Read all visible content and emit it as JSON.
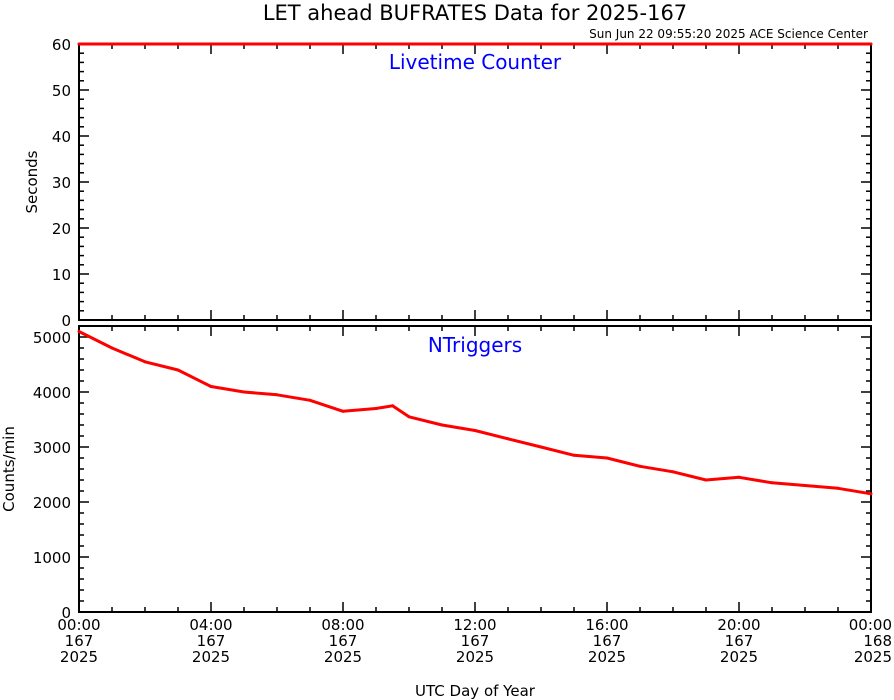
{
  "title": "LET ahead BUFRATES Data for 2025-167",
  "timestamp": "Sun Jun 22 09:55:20 2025 ACE Science Center",
  "xlabel": "UTC Day of Year",
  "colors": {
    "data": "#ff0000",
    "label": "#0000ff",
    "axes": "#000000"
  },
  "chart_data": [
    {
      "type": "line",
      "title": "Livetime Counter",
      "ylabel": "Seconds",
      "ylim": [
        0,
        60
      ],
      "yticks": [
        "0",
        "10",
        "20",
        "30",
        "40",
        "50",
        "60"
      ],
      "xlim": [
        0,
        24
      ],
      "series": [
        {
          "x": [
            0,
            24
          ],
          "values": [
            60,
            60
          ]
        }
      ]
    },
    {
      "type": "line",
      "title": "NTriggers",
      "ylabel": "Counts/min",
      "ylim": [
        0,
        5200
      ],
      "yticks": [
        "0",
        "1000",
        "2000",
        "3000",
        "4000",
        "5000"
      ],
      "xlim": [
        0,
        24
      ],
      "series": [
        {
          "x": [
            0,
            1,
            2,
            3,
            4,
            5,
            6,
            7,
            8,
            9,
            9.5,
            10,
            11,
            12,
            13,
            14,
            15,
            16,
            17,
            18,
            19,
            20,
            21,
            22,
            23,
            24
          ],
          "values": [
            5100,
            4800,
            4550,
            4400,
            4100,
            4000,
            3950,
            3850,
            3650,
            3700,
            3750,
            3550,
            3400,
            3300,
            3150,
            3000,
            2850,
            2800,
            2650,
            2550,
            2400,
            2450,
            2350,
            2300,
            2250,
            2150
          ]
        }
      ]
    }
  ],
  "xticks": [
    {
      "time": "00:00",
      "doy": "167",
      "year": "2025"
    },
    {
      "time": "04:00",
      "doy": "167",
      "year": "2025"
    },
    {
      "time": "08:00",
      "doy": "167",
      "year": "2025"
    },
    {
      "time": "12:00",
      "doy": "167",
      "year": "2025"
    },
    {
      "time": "16:00",
      "doy": "167",
      "year": "2025"
    },
    {
      "time": "20:00",
      "doy": "167",
      "year": "2025"
    },
    {
      "time": "00:00",
      "doy": "168",
      "year": "2025"
    }
  ]
}
